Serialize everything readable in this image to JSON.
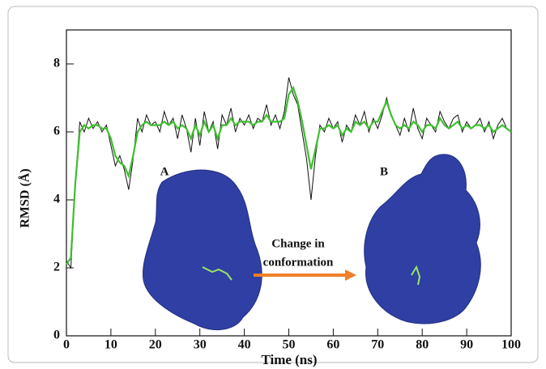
{
  "chart_data": {
    "type": "line",
    "xlabel": "Time (ns)",
    "ylabel": "RMSD (Å)",
    "x": [
      0,
      1,
      2,
      3,
      4,
      5,
      6,
      7,
      8,
      9,
      10,
      11,
      12,
      13,
      14,
      15,
      16,
      17,
      18,
      19,
      20,
      21,
      22,
      23,
      24,
      25,
      26,
      27,
      28,
      29,
      30,
      31,
      32,
      33,
      34,
      35,
      36,
      37,
      38,
      39,
      40,
      41,
      42,
      43,
      44,
      45,
      46,
      47,
      48,
      49,
      50,
      51,
      52,
      53,
      54,
      55,
      56,
      57,
      58,
      59,
      60,
      61,
      62,
      63,
      64,
      65,
      66,
      67,
      68,
      69,
      70,
      71,
      72,
      73,
      74,
      75,
      76,
      77,
      78,
      79,
      80,
      81,
      82,
      83,
      84,
      85,
      86,
      87,
      88,
      89,
      90,
      91,
      92,
      93,
      94,
      95,
      96,
      97,
      98,
      99,
      100
    ],
    "series": [
      {
        "color": "#111111",
        "values": [
          2.2,
          2.0,
          4.5,
          6.3,
          6.0,
          6.4,
          6.1,
          6.3,
          6.0,
          6.2,
          5.6,
          5.0,
          5.3,
          4.9,
          4.3,
          5.2,
          6.4,
          6.0,
          6.5,
          6.2,
          6.3,
          6.0,
          6.6,
          6.2,
          6.4,
          5.8,
          6.5,
          6.1,
          5.4,
          6.4,
          5.6,
          6.6,
          6.0,
          6.3,
          5.5,
          6.5,
          6.2,
          6.7,
          6.0,
          6.4,
          6.2,
          6.5,
          6.1,
          6.4,
          6.3,
          6.8,
          6.2,
          6.5,
          6.1,
          6.6,
          7.6,
          7.1,
          6.8,
          6.0,
          5.2,
          4.0,
          5.3,
          6.2,
          6.0,
          6.4,
          6.1,
          6.3,
          5.7,
          6.2,
          6.0,
          6.5,
          6.2,
          6.6,
          6.0,
          6.4,
          6.1,
          6.5,
          7.0,
          6.5,
          6.2,
          5.9,
          6.4,
          6.0,
          6.7,
          6.1,
          5.8,
          6.4,
          6.2,
          6.0,
          6.6,
          6.3,
          6.1,
          6.4,
          6.5,
          6.0,
          6.3,
          6.1,
          6.2,
          6.4,
          6.0,
          6.3,
          5.8,
          6.2,
          6.4,
          6.1,
          6.0
        ]
      },
      {
        "color": "#3fbf2f",
        "values": [
          2.1,
          2.3,
          4.5,
          6.0,
          6.2,
          6.1,
          6.2,
          6.2,
          6.1,
          6.1,
          5.8,
          5.3,
          5.1,
          5.0,
          4.7,
          5.3,
          6.0,
          6.2,
          6.3,
          6.2,
          6.2,
          6.2,
          6.3,
          6.2,
          6.3,
          6.1,
          6.2,
          6.1,
          5.8,
          6.2,
          5.9,
          6.3,
          6.0,
          6.2,
          5.8,
          6.2,
          6.2,
          6.4,
          6.2,
          6.3,
          6.3,
          6.3,
          6.2,
          6.3,
          6.3,
          6.5,
          6.3,
          6.3,
          6.3,
          6.4,
          7.1,
          7.3,
          6.9,
          6.3,
          5.6,
          4.9,
          5.5,
          6.1,
          6.1,
          6.2,
          6.1,
          6.2,
          5.9,
          6.1,
          6.0,
          6.3,
          6.2,
          6.3,
          6.1,
          6.3,
          6.3,
          6.6,
          6.9,
          6.5,
          6.2,
          6.1,
          6.2,
          6.1,
          6.3,
          6.2,
          6.0,
          6.2,
          6.2,
          6.1,
          6.4,
          6.2,
          6.1,
          6.2,
          6.3,
          6.1,
          6.2,
          6.1,
          6.2,
          6.2,
          6.1,
          6.2,
          6.0,
          6.1,
          6.2,
          6.1,
          6.0
        ]
      }
    ],
    "xlim": [
      0,
      100
    ],
    "xticks": [
      0,
      10,
      20,
      30,
      40,
      50,
      60,
      70,
      80,
      90,
      100
    ],
    "ylim": [
      0,
      9
    ],
    "yticks": [
      0,
      2,
      4,
      6,
      8
    ],
    "annotations": [
      "A",
      "B",
      "Change in",
      "conformation"
    ]
  }
}
